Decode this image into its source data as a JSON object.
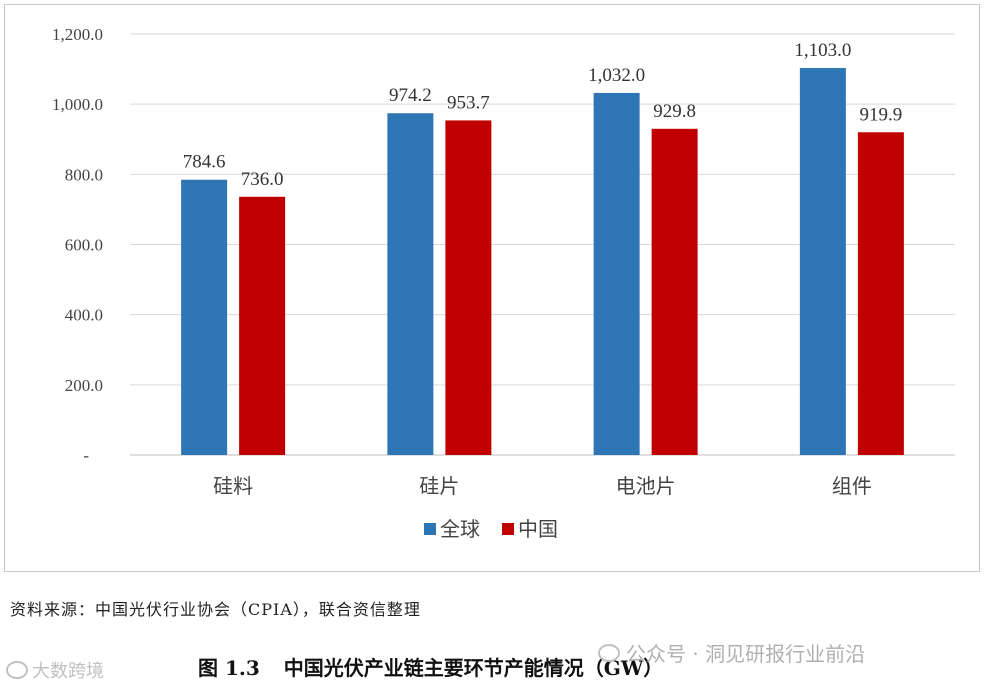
{
  "chart_data": {
    "type": "bar",
    "categories": [
      "硅料",
      "硅片",
      "电池片",
      "组件"
    ],
    "series": [
      {
        "name": "全球",
        "values": [
          784.6,
          974.2,
          1032.0,
          1103.0
        ],
        "labels": [
          "784.6",
          "974.2",
          "1,032.0",
          "1,103.0"
        ],
        "color": "#2e75b6"
      },
      {
        "name": "中国",
        "values": [
          736.0,
          953.7,
          929.8,
          919.9
        ],
        "labels": [
          "736.0",
          "953.7",
          "929.8",
          "919.9"
        ],
        "color": "#c00000"
      }
    ],
    "ylim": [
      0,
      1200
    ],
    "yticks": [
      0,
      200,
      400,
      600,
      800,
      1000,
      1200
    ],
    "ytick_labels": [
      "-",
      "200.0",
      "400.0",
      "600.0",
      "800.0",
      "1,000.0",
      "1,200.0"
    ],
    "grid": true,
    "legend_position": "bottom-center"
  },
  "source_text": "资料来源：中国光伏行业协会（CPIA），联合资信整理",
  "caption": {
    "number": "图 1.3",
    "title": "中国光伏产业链主要环节产能情况（GW）"
  },
  "watermarks": {
    "left": "大数跨境",
    "right": "公众号 · 洞见研报行业前沿"
  }
}
